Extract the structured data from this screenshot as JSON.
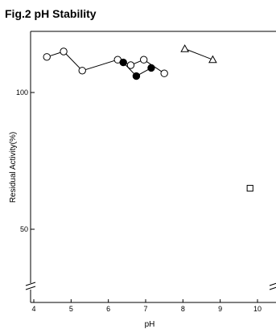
{
  "chart_data": {
    "type": "scatter",
    "title": "Fig.2 pH Stability",
    "xlabel": "pH",
    "ylabel": "Residual Activity(%)",
    "xlim": [
      4,
      10
    ],
    "ylim_visible": [
      50,
      100
    ],
    "axis_break": true,
    "x_ticks": [
      "4",
      "5",
      "6",
      "7",
      "8",
      "9",
      "10"
    ],
    "y_ticks": [
      "100",
      "50"
    ],
    "grid": false,
    "series": [
      {
        "marker": "open-circle",
        "points": [
          [
            4.35,
            113
          ],
          [
            4.8,
            115
          ],
          [
            5.3,
            108
          ],
          [
            6.25,
            112
          ],
          [
            6.6,
            110
          ],
          [
            6.95,
            112
          ],
          [
            7.5,
            107
          ]
        ]
      },
      {
        "marker": "filled-circle",
        "points": [
          [
            6.4,
            111
          ],
          [
            6.75,
            106
          ],
          [
            7.15,
            109
          ]
        ]
      },
      {
        "marker": "open-triangle",
        "points": [
          [
            8.05,
            116
          ],
          [
            8.8,
            112
          ]
        ]
      },
      {
        "marker": "open-square",
        "points": [
          [
            9.8,
            65
          ]
        ]
      }
    ]
  }
}
